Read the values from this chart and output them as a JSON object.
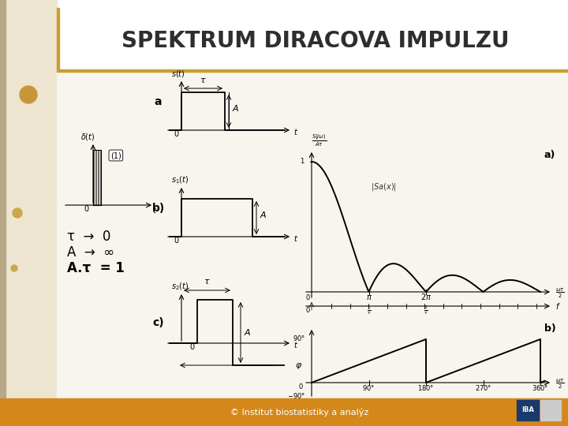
{
  "title": "SPEKTRUM DIRACOVA IMPULZU",
  "title_fontsize": 20,
  "title_fontweight": "bold",
  "title_color": "#2E2E2E",
  "bg_color": "#EDE5D0",
  "left_strip_color": "#B8A888",
  "top_bar_color": "#C8A030",
  "footer_color": "#D4881A",
  "footer_text": "© Institut biostatistiky a analýz",
  "footer_fontsize": 8,
  "slide_bg": "#FFFFFF",
  "text_tau": "τ  →  0",
  "text_A": "A  →  ∞",
  "text_Atau": "A.τ  = 1",
  "circle1_color": "#C8963A",
  "circle2_color": "#C8A84B",
  "iba_blue": "#1a3a6b",
  "content_bg": "#F8F5EE"
}
